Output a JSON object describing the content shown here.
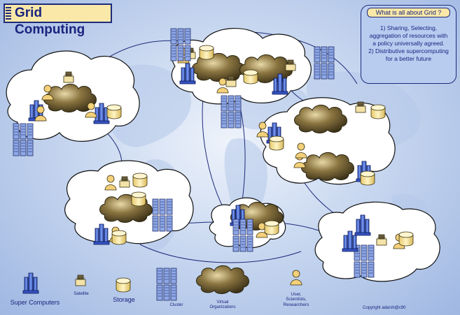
{
  "title": "Grid Computing",
  "info": {
    "heading": "What is all about Grid ?",
    "lines": [
      "1) Sharing, Selecting,",
      "aggregation of resources with",
      "a policy universally agreed.",
      "2) Distributive supercomputing",
      "for a better future"
    ]
  },
  "legend": {
    "super_computers": "Super Computers",
    "satellite": "Satellite",
    "storage": "Storage",
    "cluster": "Cluster",
    "virtual_organizations_1": "Virtual",
    "virtual_organizations_2": "Organizations",
    "users_1": "User,",
    "users_2": "Scientists,",
    "users_3": "Researchers"
  },
  "copyright": "Copyright adarsh@c90",
  "colors": {
    "title_fill": "#f9e8a8",
    "border": "#1d2a7a",
    "cloud_fill": "#ffffff",
    "vo_cloud": "#6b5a2e"
  }
}
